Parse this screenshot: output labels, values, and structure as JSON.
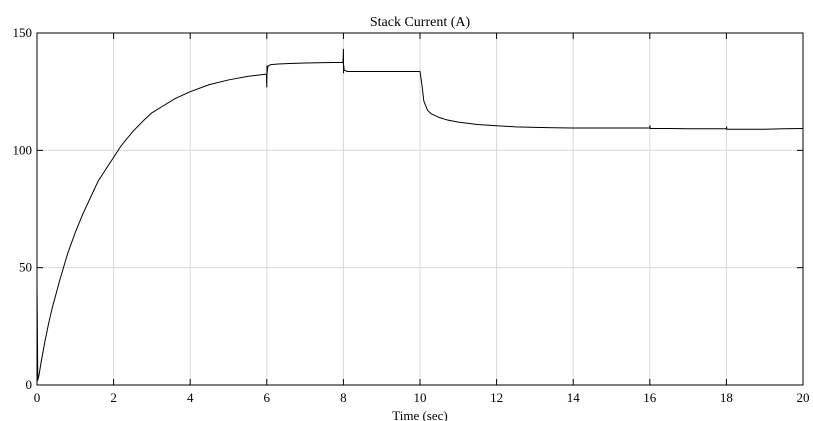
{
  "chart_data": {
    "type": "line",
    "title": "Stack Current (A)",
    "xlabel": "Time (sec)",
    "ylabel": "",
    "xlim": [
      0,
      20
    ],
    "ylim": [
      0,
      150
    ],
    "x_ticks": [
      0,
      2,
      4,
      6,
      8,
      10,
      12,
      14,
      16,
      18,
      20
    ],
    "y_ticks": [
      0,
      50,
      100,
      150
    ],
    "grid": true,
    "legend": "none",
    "colors": {
      "line": "#000000",
      "grid": "#d9d9d9",
      "axes": "#000000"
    },
    "series": [
      {
        "x": [
          0,
          0.02,
          0.05,
          0.1,
          0.2,
          0.3,
          0.4,
          0.5,
          0.6,
          0.8,
          1.0,
          1.2,
          1.4,
          1.6,
          1.8,
          2.0,
          2.2,
          2.5,
          2.8,
          3.0,
          3.3,
          3.6,
          4.0,
          4.5,
          5.0,
          5.5,
          5.99,
          6.0,
          6.005,
          6.01,
          6.02,
          6.04,
          6.1,
          6.3,
          6.6,
          7.0,
          7.5,
          7.99,
          8.0,
          8.005,
          8.01,
          8.02,
          8.05,
          8.1,
          8.3,
          8.6,
          9.0,
          9.5,
          10.0,
          10.05,
          10.1,
          10.2,
          10.3,
          10.5,
          10.7,
          11.0,
          11.5,
          12.0,
          12.5,
          13.0,
          13.5,
          14.0,
          15.0,
          16.0,
          16.005,
          16.01,
          16.02,
          16.5,
          17.0,
          17.5,
          18.0,
          18.005,
          18.01,
          18.02,
          18.5,
          19.0,
          19.5,
          20.0
        ],
        "values": [
          44,
          2,
          4,
          9,
          18,
          26,
          33,
          39,
          45,
          56,
          65,
          73,
          80,
          87,
          92,
          97,
          102,
          108,
          113,
          116,
          119,
          122,
          125,
          128,
          130,
          131.5,
          132.5,
          127,
          136,
          133,
          135,
          136,
          136.5,
          136.8,
          137,
          137.2,
          137.4,
          137.5,
          143,
          133,
          136,
          134,
          134,
          133.6,
          133.6,
          133.6,
          133.6,
          133.6,
          133.6,
          128,
          121,
          117,
          115.5,
          114,
          113,
          112,
          111,
          110.5,
          110,
          109.8,
          109.6,
          109.5,
          109.5,
          109.5,
          110.5,
          109.3,
          109.3,
          109.3,
          109.2,
          109.2,
          109.2,
          110,
          109,
          109,
          109,
          109,
          109.2,
          109.3
        ]
      }
    ]
  }
}
